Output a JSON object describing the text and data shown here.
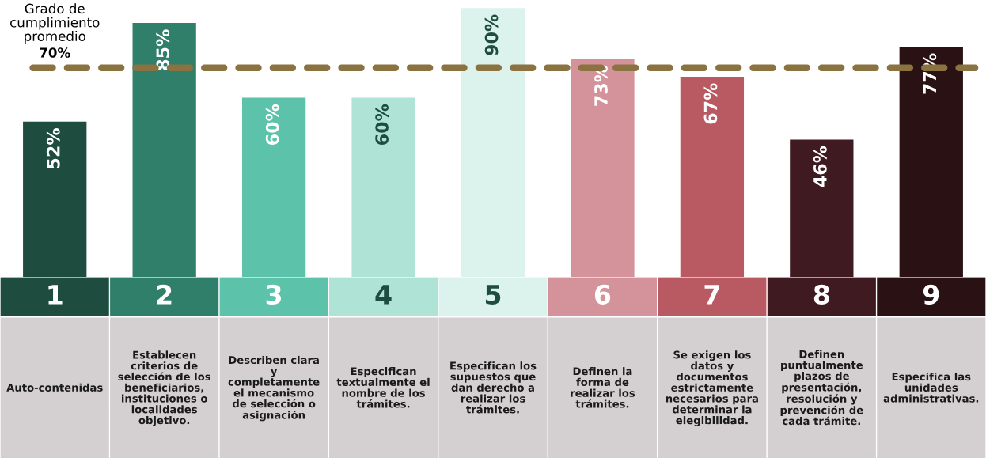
{
  "chart_data": {
    "type": "bar",
    "categories": [
      "1",
      "2",
      "3",
      "4",
      "5",
      "6",
      "7",
      "8",
      "9"
    ],
    "values": [
      52,
      85,
      60,
      60,
      90,
      73,
      67,
      46,
      77
    ],
    "value_labels": [
      "52%",
      "85%",
      "60%",
      "60%",
      "90%",
      "73%",
      "67%",
      "46%",
      "77%"
    ],
    "colors": [
      "#1e4d40",
      "#2f7f6b",
      "#5cc2aa",
      "#aee3d5",
      "#dcf2ec",
      "#d4929a",
      "#b95a63",
      "#3f1a20",
      "#2a1114"
    ],
    "ref_lines": [
      {
        "axis": "y",
        "value": 70,
        "label": "Grado de\ncumplimiento\npromedio\n70%",
        "color": "#8a7340",
        "line_style": "dashed"
      }
    ],
    "annotations": [
      "Auto-contenidas",
      "Establecen\ncriterios de\nselección de los\nbeneficiarios,\ninstituciones o\nlocalidades\nobjetivo.",
      "Describen clara\ny\ncompletamente\nel mecanismo\nde selección o\nasignación",
      "Especifican\ntextualmente el\nnombre de los\ntrámites.",
      "Especifican los\nsupuestos que\ndan derecho a\nrealizar los\ntrámites.",
      "Definen la\nforma de\nrealizar los\ntrámites.",
      "Se exigen los\ndatos y\ndocumentos\nestrictamente\nnecesarios para\ndeterminar la\nelegibilidad.",
      "Definen\npuntualmente\nplazos de\npresentación,\nresolución y\nprevención de\ncada trámite.",
      "Especifica las\nunidades\nadministrativas."
    ],
    "legend": false
  }
}
